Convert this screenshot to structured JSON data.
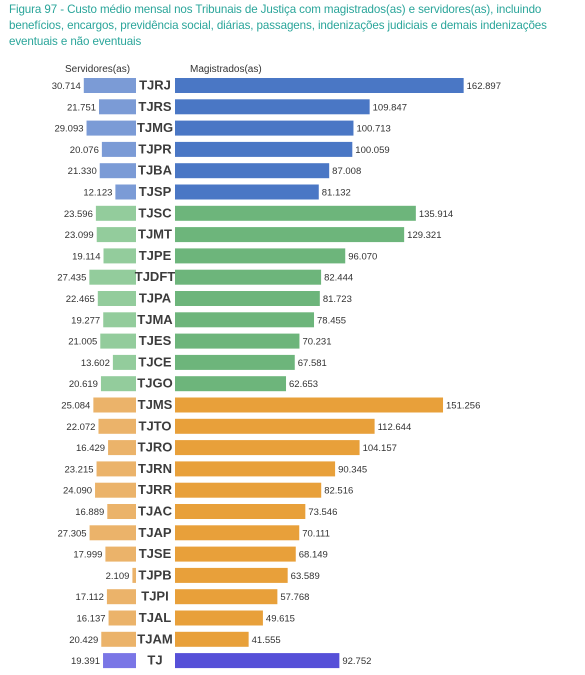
{
  "caption": "Figura 97 - Custo médio mensal nos Tribunais de Justiça com magistrados(as) e servidores(as), incluindo benefícios, encargos, previdência social, diárias, passagens, indenizações judiciais e demais indenizações eventuais e não eventuais",
  "chart_data": {
    "type": "bar",
    "orientation": "horizontal",
    "headers": {
      "left": "Servidores(as)",
      "right": "Magistrados(as)"
    },
    "categories": [
      "TJRJ",
      "TJRS",
      "TJMG",
      "TJPR",
      "TJBA",
      "TJSP",
      "TJSC",
      "TJMT",
      "TJPE",
      "TJDFT",
      "TJPA",
      "TJMA",
      "TJES",
      "TJCE",
      "TJGO",
      "TJMS",
      "TJTO",
      "TJRO",
      "TJRN",
      "TJRR",
      "TJAC",
      "TJAP",
      "TJSE",
      "TJPB",
      "TJPI",
      "TJAL",
      "TJAM",
      "TJ"
    ],
    "groups": [
      0,
      0,
      0,
      0,
      0,
      0,
      1,
      1,
      1,
      1,
      1,
      1,
      1,
      1,
      1,
      2,
      2,
      2,
      2,
      2,
      2,
      2,
      2,
      2,
      2,
      2,
      2,
      3
    ],
    "group_colors": {
      "right": [
        "#4a77c5",
        "#6db57b",
        "#e8a03a",
        "#5650d8"
      ],
      "left": [
        "#7b9bd6",
        "#93cc9c",
        "#ebb36a",
        "#7a76e6"
      ]
    },
    "series": [
      {
        "name": "Servidores(as)",
        "values": [
          30714,
          21751,
          29093,
          20076,
          21330,
          12123,
          23596,
          23099,
          19114,
          27435,
          22465,
          19277,
          21005,
          13602,
          20619,
          25084,
          22072,
          16429,
          23215,
          24090,
          16889,
          27305,
          17999,
          2109,
          17112,
          16137,
          20429,
          19391
        ],
        "labels": [
          "30.714",
          "21.751",
          "29.093",
          "20.076",
          "21.330",
          "12.123",
          "23.596",
          "23.099",
          "19.114",
          "27.435",
          "22.465",
          "19.277",
          "21.005",
          "13.602",
          "20.619",
          "25.084",
          "22.072",
          "16.429",
          "23.215",
          "24.090",
          "16.889",
          "27.305",
          "17.999",
          "2.109",
          "17.112",
          "16.137",
          "20.429",
          "19.391"
        ]
      },
      {
        "name": "Magistrados(as)",
        "values": [
          162897,
          109847,
          100713,
          100059,
          87008,
          81132,
          135914,
          129321,
          96070,
          82444,
          81723,
          78455,
          70231,
          67581,
          62653,
          151256,
          112644,
          104157,
          90345,
          82516,
          73546,
          70111,
          68149,
          63589,
          57768,
          49615,
          41555,
          92752
        ],
        "labels": [
          "162.897",
          "109.847",
          "100.713",
          "100.059",
          "87.008",
          "81.132",
          "135.914",
          "129.321",
          "96.070",
          "82.444",
          "81.723",
          "78.455",
          "70.231",
          "67.581",
          "62.653",
          "151.256",
          "112.644",
          "104.157",
          "90.345",
          "82.516",
          "73.546",
          "70.111",
          "68.149",
          "63.589",
          "57.768",
          "49.615",
          "41.555",
          "92.752"
        ]
      }
    ]
  }
}
